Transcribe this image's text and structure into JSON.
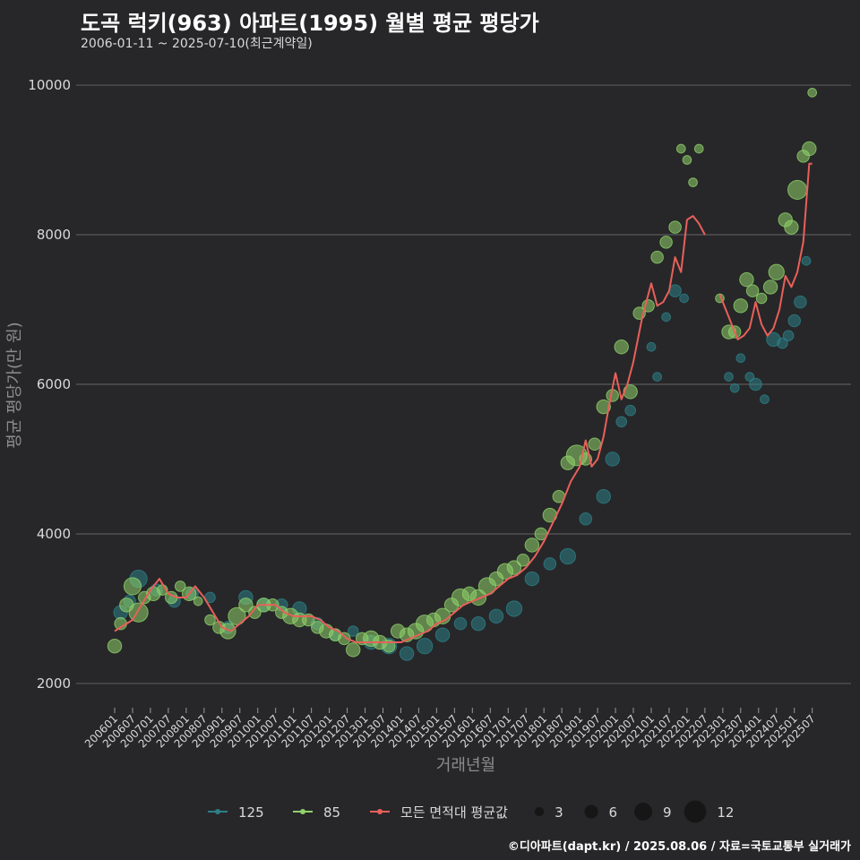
{
  "header": {
    "title": "도곡 럭키(963) 아파트(1995) 월별 평균 평당가",
    "subtitle": "2006-01-11 ~ 2025-07-10(최근계약일)"
  },
  "footer": {
    "credit": "©디아파트(dapt.kr) / 2025.08.06 / 자료=국토교통부 실거래가"
  },
  "colors": {
    "background": "#272729",
    "grid": "#5a5a5a",
    "series_125": "#2c7f86",
    "series_85": "#8fd16a",
    "average": "#e8605a",
    "text": "#d9d9d9"
  },
  "chart_data": {
    "type": "line",
    "title": "도곡 럭키(963) 아파트(1995) 월별 평균 평당가",
    "xlabel": "거래년월",
    "ylabel": "평균 평당가(만 원)",
    "ylim": [
      1700,
      10300
    ],
    "yticks": [
      2000,
      4000,
      6000,
      8000,
      10000
    ],
    "x_range": [
      "200601",
      "202508"
    ],
    "x_tick_labels": [
      "200601",
      "200607",
      "200701",
      "200707",
      "200801",
      "200807",
      "200901",
      "200907",
      "201001",
      "201007",
      "201101",
      "201107",
      "201201",
      "201207",
      "201301",
      "201307",
      "201401",
      "201407",
      "201501",
      "201507",
      "201601",
      "201607",
      "201701",
      "201707",
      "201801",
      "201807",
      "201901",
      "201907",
      "202001",
      "202007",
      "202101",
      "202107",
      "202201",
      "202207",
      "202301",
      "202307",
      "202401",
      "202407",
      "202501",
      "202507"
    ],
    "legend": {
      "series_items": [
        {
          "name": "125",
          "color": "#2c7f86"
        },
        {
          "name": "85",
          "color": "#8fd16a"
        },
        {
          "name": "모든 면적대 평균값",
          "color": "#e8605a"
        }
      ],
      "size_items": [
        {
          "label": "3",
          "value": 3
        },
        {
          "label": "6",
          "value": 6
        },
        {
          "label": "9",
          "value": 9
        },
        {
          "label": "12",
          "value": 12
        }
      ]
    },
    "average_series": {
      "name": "모든 면적대 평균값",
      "points": [
        [
          "200601",
          2700
        ],
        [
          "200607",
          2850
        ],
        [
          "200701",
          3250
        ],
        [
          "200704",
          3400
        ],
        [
          "200707",
          3200
        ],
        [
          "200710",
          3150
        ],
        [
          "200801",
          3150
        ],
        [
          "200804",
          3300
        ],
        [
          "200807",
          3150
        ],
        [
          "200810",
          2950
        ],
        [
          "200901",
          2750
        ],
        [
          "200904",
          2700
        ],
        [
          "200907",
          2800
        ],
        [
          "200910",
          2900
        ],
        [
          "201001",
          3050
        ],
        [
          "201004",
          3050
        ],
        [
          "201007",
          3050
        ],
        [
          "201010",
          2950
        ],
        [
          "201101",
          2900
        ],
        [
          "201104",
          2900
        ],
        [
          "201107",
          2900
        ],
        [
          "201110",
          2850
        ],
        [
          "201201",
          2750
        ],
        [
          "201204",
          2700
        ],
        [
          "201207",
          2600
        ],
        [
          "201210",
          2550
        ],
        [
          "201301",
          2550
        ],
        [
          "201304",
          2550
        ],
        [
          "201307",
          2550
        ],
        [
          "201310",
          2550
        ],
        [
          "201401",
          2550
        ],
        [
          "201404",
          2600
        ],
        [
          "201407",
          2650
        ],
        [
          "201410",
          2700
        ],
        [
          "201501",
          2800
        ],
        [
          "201504",
          2850
        ],
        [
          "201507",
          2950
        ],
        [
          "201510",
          3050
        ],
        [
          "201601",
          3100
        ],
        [
          "201604",
          3150
        ],
        [
          "201607",
          3200
        ],
        [
          "201610",
          3300
        ],
        [
          "201701",
          3400
        ],
        [
          "201704",
          3450
        ],
        [
          "201707",
          3550
        ],
        [
          "201710",
          3700
        ],
        [
          "201801",
          3900
        ],
        [
          "201804",
          4150
        ],
        [
          "201807",
          4400
        ],
        [
          "201810",
          4700
        ],
        [
          "201901",
          4900
        ],
        [
          "201903",
          5250
        ],
        [
          "201905",
          4900
        ],
        [
          "201907",
          5000
        ],
        [
          "201909",
          5300
        ],
        [
          "201911",
          5750
        ],
        [
          "202001",
          6150
        ],
        [
          "202003",
          5800
        ],
        [
          "202005",
          6000
        ],
        [
          "202007",
          6300
        ],
        [
          "202010",
          6900
        ],
        [
          "202101",
          7350
        ],
        [
          "202103",
          7050
        ],
        [
          "202105",
          7100
        ],
        [
          "202107",
          7250
        ],
        [
          "202109",
          7700
        ],
        [
          "202111",
          7500
        ],
        [
          "202201",
          8200
        ],
        [
          "202203",
          8250
        ],
        [
          "202205",
          8150
        ],
        [
          "202207",
          8000
        ],
        null,
        [
          "202212",
          7200
        ],
        [
          "202302",
          7000
        ],
        [
          "202304",
          6800
        ],
        [
          "202306",
          6600
        ],
        [
          "202308",
          6650
        ],
        [
          "202310",
          6750
        ],
        [
          "202312",
          7100
        ],
        [
          "202402",
          6800
        ],
        [
          "202404",
          6650
        ],
        [
          "202406",
          6750
        ],
        [
          "202408",
          7000
        ],
        [
          "202410",
          7450
        ],
        [
          "202412",
          7300
        ],
        [
          "202502",
          7500
        ],
        [
          "202504",
          7900
        ],
        [
          "202506",
          8950
        ],
        [
          "202507",
          8950
        ]
      ]
    },
    "points_85": [
      [
        "200601",
        2500,
        6
      ],
      [
        "200603",
        2800,
        5
      ],
      [
        "200605",
        3050,
        6
      ],
      [
        "200607",
        3300,
        8
      ],
      [
        "200609",
        2950,
        9
      ],
      [
        "200611",
        3150,
        5
      ],
      [
        "200702",
        3200,
        6
      ],
      [
        "200705",
        3250,
        4
      ],
      [
        "200708",
        3150,
        5
      ],
      [
        "200711",
        3300,
        4
      ],
      [
        "200802",
        3200,
        6
      ],
      [
        "200805",
        3100,
        3
      ],
      [
        "200809",
        2850,
        4
      ],
      [
        "200812",
        2750,
        5
      ],
      [
        "200903",
        2700,
        7
      ],
      [
        "200906",
        2900,
        8
      ],
      [
        "200909",
        3050,
        6
      ],
      [
        "200912",
        2950,
        5
      ],
      [
        "201003",
        3050,
        6
      ],
      [
        "201006",
        3050,
        5
      ],
      [
        "201009",
        2950,
        5
      ],
      [
        "201012",
        2900,
        7
      ],
      [
        "201103",
        2850,
        6
      ],
      [
        "201106",
        2850,
        5
      ],
      [
        "201109",
        2750,
        5
      ],
      [
        "201112",
        2700,
        6
      ],
      [
        "201203",
        2650,
        5
      ],
      [
        "201206",
        2600,
        5
      ],
      [
        "201209",
        2450,
        6
      ],
      [
        "201212",
        2600,
        5
      ],
      [
        "201303",
        2600,
        7
      ],
      [
        "201306",
        2550,
        6
      ],
      [
        "201309",
        2500,
        5
      ],
      [
        "201312",
        2700,
        6
      ],
      [
        "201403",
        2650,
        6
      ],
      [
        "201406",
        2700,
        7
      ],
      [
        "201409",
        2800,
        8
      ],
      [
        "201412",
        2850,
        6
      ],
      [
        "201503",
        2900,
        7
      ],
      [
        "201506",
        3050,
        6
      ],
      [
        "201509",
        3150,
        8
      ],
      [
        "201512",
        3200,
        6
      ],
      [
        "201603",
        3150,
        7
      ],
      [
        "201606",
        3300,
        8
      ],
      [
        "201609",
        3400,
        6
      ],
      [
        "201612",
        3500,
        7
      ],
      [
        "201703",
        3550,
        6
      ],
      [
        "201706",
        3650,
        5
      ],
      [
        "201709",
        3850,
        6
      ],
      [
        "201712",
        4000,
        5
      ],
      [
        "201803",
        4250,
        6
      ],
      [
        "201806",
        4500,
        5
      ],
      [
        "201809",
        4950,
        6
      ],
      [
        "201812",
        5050,
        10
      ],
      [
        "201903",
        5000,
        5
      ],
      [
        "201906",
        5200,
        5
      ],
      [
        "201909",
        5700,
        6
      ],
      [
        "201912",
        5850,
        5
      ],
      [
        "202003",
        6500,
        6
      ],
      [
        "202006",
        5900,
        6
      ],
      [
        "202009",
        6950,
        5
      ],
      [
        "202012",
        7050,
        5
      ],
      [
        "202103",
        7700,
        5
      ],
      [
        "202106",
        7900,
        5
      ],
      [
        "202109",
        8100,
        5
      ],
      [
        "202111",
        9150,
        3
      ],
      [
        "202201",
        9000,
        3
      ],
      [
        "202203",
        8700,
        3
      ],
      [
        "202205",
        9150,
        3
      ],
      [
        "202212",
        7150,
        3
      ],
      [
        "202303",
        6700,
        6
      ],
      [
        "202305",
        6700,
        5
      ],
      [
        "202307",
        7050,
        6
      ],
      [
        "202309",
        7400,
        6
      ],
      [
        "202311",
        7250,
        5
      ],
      [
        "202402",
        7150,
        4
      ],
      [
        "202405",
        7300,
        6
      ],
      [
        "202407",
        7500,
        7
      ],
      [
        "202410",
        8200,
        6
      ],
      [
        "202412",
        8100,
        6
      ],
      [
        "202502",
        8600,
        9
      ],
      [
        "202504",
        9050,
        5
      ],
      [
        "202506",
        9150,
        6
      ],
      [
        "202507",
        9900,
        3
      ]
    ],
    "points_125": [
      [
        "200603",
        2950,
        6
      ],
      [
        "200606",
        3100,
        5
      ],
      [
        "200609",
        3400,
        8
      ],
      [
        "200703",
        3250,
        5
      ],
      [
        "200709",
        3100,
        5
      ],
      [
        "200803",
        3200,
        5
      ],
      [
        "200809",
        3150,
        4
      ],
      [
        "200903",
        2750,
        5
      ],
      [
        "200909",
        3150,
        6
      ],
      [
        "201003",
        3050,
        6
      ],
      [
        "201009",
        3050,
        5
      ],
      [
        "201103",
        3000,
        6
      ],
      [
        "201109",
        2800,
        5
      ],
      [
        "201203",
        2650,
        5
      ],
      [
        "201209",
        2700,
        4
      ],
      [
        "201303",
        2550,
        6
      ],
      [
        "201309",
        2500,
        7
      ],
      [
        "201403",
        2400,
        6
      ],
      [
        "201409",
        2500,
        7
      ],
      [
        "201503",
        2650,
        6
      ],
      [
        "201509",
        2800,
        5
      ],
      [
        "201603",
        2800,
        6
      ],
      [
        "201609",
        2900,
        6
      ],
      [
        "201703",
        3000,
        7
      ],
      [
        "201709",
        3400,
        6
      ],
      [
        "201803",
        3600,
        5
      ],
      [
        "201809",
        3700,
        7
      ],
      [
        "201903",
        4200,
        5
      ],
      [
        "201909",
        4500,
        6
      ],
      [
        "201912",
        5000,
        6
      ],
      [
        "202003",
        5500,
        4
      ],
      [
        "202006",
        5650,
        4
      ],
      [
        "202101",
        6500,
        3
      ],
      [
        "202103",
        6100,
        3
      ],
      [
        "202106",
        6900,
        3
      ],
      [
        "202109",
        7250,
        5
      ],
      [
        "202112",
        7150,
        3
      ],
      [
        "202303",
        6100,
        3
      ],
      [
        "202305",
        5950,
        3
      ],
      [
        "202307",
        6350,
        3
      ],
      [
        "202310",
        6100,
        3
      ],
      [
        "202312",
        6000,
        5
      ],
      [
        "202403",
        5800,
        3
      ],
      [
        "202406",
        6600,
        6
      ],
      [
        "202409",
        6550,
        4
      ],
      [
        "202411",
        6650,
        4
      ],
      [
        "202501",
        6850,
        5
      ],
      [
        "202503",
        7100,
        5
      ],
      [
        "202505",
        7650,
        3
      ]
    ]
  }
}
